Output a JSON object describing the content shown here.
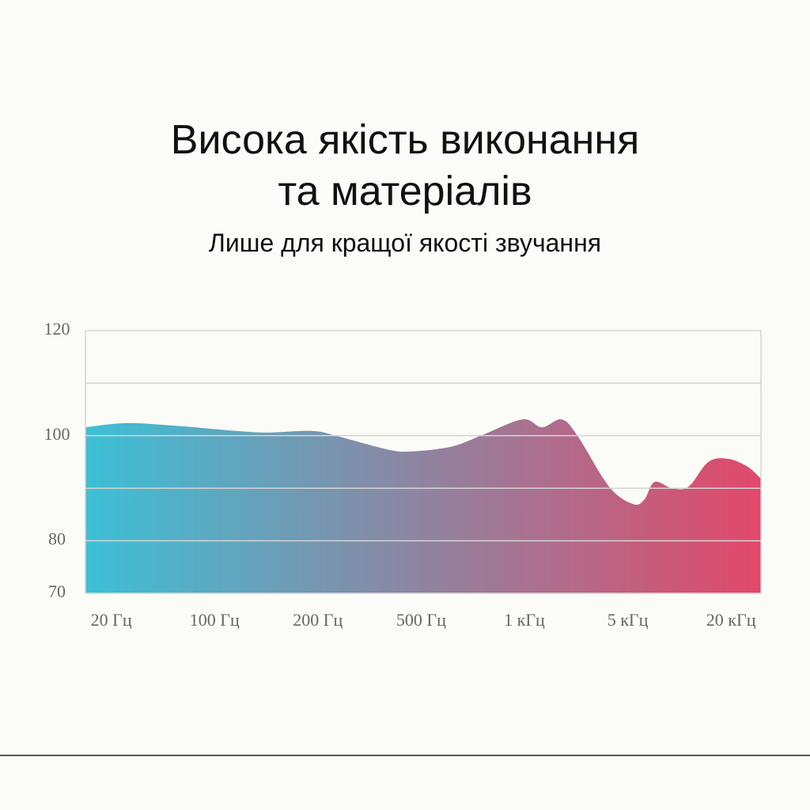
{
  "chart_data": {
    "type": "area",
    "title_lines": [
      "Висока якість виконання",
      "та матеріалів"
    ],
    "subtitle": "Лише для кращої якості звучання",
    "categories": [
      "20 Гц",
      "100 Гц",
      "200 Гц",
      "500 Гц",
      "1 кГц",
      "5 кГц",
      "20 кГц"
    ],
    "x": [
      -0.25,
      0.15,
      0.61,
      1.22,
      1.52,
      1.95,
      2.21,
      2.67,
      2.9,
      3.29,
      3.59,
      3.98,
      4.17,
      4.36,
      4.51,
      4.82,
      5.05,
      5.16,
      5.26,
      5.43,
      5.59,
      5.78,
      5.97,
      6.16,
      6.29
    ],
    "values": [
      101.6,
      102.4,
      101.9,
      100.9,
      100.6,
      100.9,
      99.8,
      97.4,
      97.0,
      97.9,
      100.1,
      103.1,
      101.6,
      103.1,
      100.1,
      90.3,
      87.0,
      87.8,
      91.2,
      90.0,
      90.3,
      95.0,
      95.6,
      94.1,
      91.8
    ],
    "xlim": [
      -0.25,
      6.29
    ],
    "ylim": [
      70,
      120
    ],
    "yticks": [
      70,
      80,
      {
        "value": 90,
        "label": null
      },
      100,
      {
        "value": 110,
        "label": null
      },
      120
    ],
    "grid": true,
    "gradient": [
      "#3cc0d6",
      "#e2486a"
    ]
  }
}
